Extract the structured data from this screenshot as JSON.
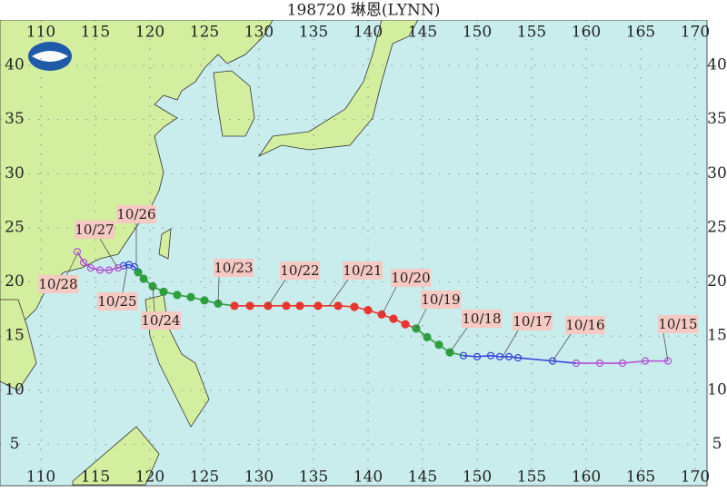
{
  "chart_data": {
    "type": "track",
    "title": "198720 琳恩(LYNN)",
    "xlim": [
      106.25,
      171.25
    ],
    "ylim": [
      1.6,
      44.2
    ],
    "xticks": [
      110,
      115,
      120,
      125,
      130,
      135,
      140,
      145,
      150,
      155,
      160,
      165,
      170
    ],
    "yticks": [
      5,
      10,
      15,
      20,
      25,
      30,
      35,
      40
    ],
    "grid": true,
    "track": {
      "lon": [
        167.5,
        165.42,
        163.33,
        161.25,
        159.08,
        156.92,
        153.75,
        152.92,
        152.08,
        151.25,
        150.0,
        148.75,
        147.5,
        146.5,
        145.42,
        144.42,
        143.42,
        142.33,
        141.25,
        140.0,
        138.75,
        137.25,
        135.42,
        133.75,
        132.5,
        130.83,
        129.17,
        127.75,
        126.25,
        125.0,
        123.75,
        122.5,
        121.25,
        120.25,
        119.42,
        118.92,
        118.58,
        118.08,
        117.58,
        117.08,
        116.25,
        115.42,
        114.58,
        113.92,
        113.33
      ],
      "lat": [
        12.7,
        12.7,
        12.5,
        12.5,
        12.5,
        12.7,
        13.0,
        13.1,
        13.1,
        13.2,
        13.1,
        13.2,
        13.5,
        14.2,
        14.9,
        15.7,
        16.1,
        16.6,
        17.0,
        17.4,
        17.7,
        17.8,
        17.8,
        17.8,
        17.8,
        17.8,
        17.8,
        17.8,
        18.0,
        18.3,
        18.6,
        18.8,
        19.1,
        19.6,
        20.3,
        20.9,
        21.4,
        21.6,
        21.5,
        21.3,
        21.1,
        21.1,
        21.3,
        21.8,
        22.8
      ],
      "colors": [
        "#b44fd6",
        "#b44fd6",
        "#b44fd6",
        "#b44fd6",
        "#b44fd6",
        "#3344dd",
        "#3344dd",
        "#3344dd",
        "#3344dd",
        "#3344dd",
        "#3344dd",
        "#3344dd",
        "#2e9e3e",
        "#2e9e3e",
        "#2e9e3e",
        "#2e9e3e",
        "#e8352e",
        "#e8352e",
        "#e8352e",
        "#e8352e",
        "#e8352e",
        "#e8352e",
        "#e8352e",
        "#e8352e",
        "#e8352e",
        "#e8352e",
        "#e8352e",
        "#e8352e",
        "#2e9e3e",
        "#2e9e3e",
        "#2e9e3e",
        "#2e9e3e",
        "#2e9e3e",
        "#2e9e3e",
        "#2e9e3e",
        "#2e9e3e",
        "#3344dd",
        "#3344dd",
        "#3344dd",
        "#b44fd6",
        "#b44fd6",
        "#b44fd6",
        "#b44fd6",
        "#b44fd6",
        "#b44fd6"
      ],
      "filled": [
        false,
        false,
        false,
        false,
        false,
        false,
        false,
        false,
        false,
        false,
        false,
        false,
        true,
        true,
        true,
        true,
        true,
        true,
        true,
        true,
        true,
        true,
        true,
        true,
        true,
        true,
        true,
        true,
        true,
        true,
        true,
        true,
        true,
        true,
        true,
        true,
        false,
        false,
        false,
        false,
        false,
        false,
        false,
        false,
        false
      ]
    },
    "date_labels": [
      "10/15",
      "10/16",
      "10/17",
      "10/18",
      "10/19",
      "10/20",
      "10/21",
      "10/22",
      "10/23",
      "10/24",
      "10/25",
      "10/26",
      "10/27",
      "10/28"
    ]
  }
}
